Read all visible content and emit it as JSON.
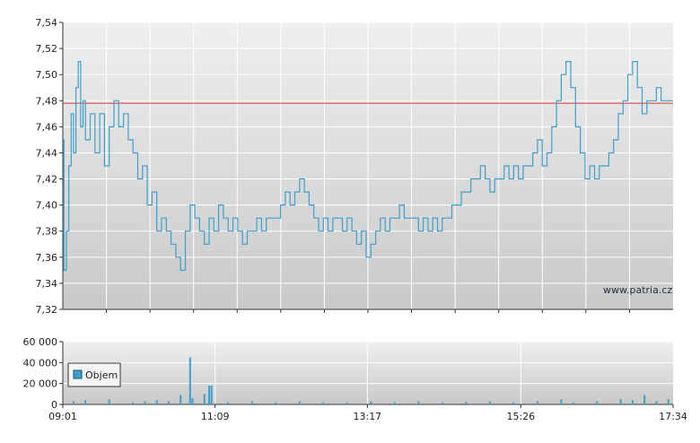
{
  "chart_data": [
    {
      "type": "line",
      "name": "price",
      "title": "",
      "xlabel": "",
      "ylabel": "",
      "ylim": [
        7.32,
        7.54
      ],
      "yticks": [
        "7,54",
        "7,52",
        "7,50",
        "7,48",
        "7,46",
        "7,44",
        "7,42",
        "7,40",
        "7,38",
        "7,36",
        "7,34",
        "7,32"
      ],
      "reference_line": 7.478,
      "grid": true,
      "watermark": "www.patria.cz",
      "series": [
        {
          "points": [
            [
              "09:01",
              7.45
            ],
            [
              "09:02",
              7.35
            ],
            [
              "09:04",
              7.38
            ],
            [
              "09:06",
              7.43
            ],
            [
              "09:08",
              7.47
            ],
            [
              "09:10",
              7.44
            ],
            [
              "09:12",
              7.49
            ],
            [
              "09:14",
              7.51
            ],
            [
              "09:16",
              7.46
            ],
            [
              "09:18",
              7.48
            ],
            [
              "09:20",
              7.45
            ],
            [
              "09:24",
              7.47
            ],
            [
              "09:28",
              7.44
            ],
            [
              "09:32",
              7.47
            ],
            [
              "09:36",
              7.43
            ],
            [
              "09:40",
              7.46
            ],
            [
              "09:44",
              7.48
            ],
            [
              "09:48",
              7.46
            ],
            [
              "09:52",
              7.47
            ],
            [
              "09:56",
              7.45
            ],
            [
              "10:00",
              7.44
            ],
            [
              "10:04",
              7.42
            ],
            [
              "10:08",
              7.43
            ],
            [
              "10:12",
              7.4
            ],
            [
              "10:16",
              7.41
            ],
            [
              "10:20",
              7.38
            ],
            [
              "10:24",
              7.39
            ],
            [
              "10:28",
              7.38
            ],
            [
              "10:32",
              7.37
            ],
            [
              "10:36",
              7.36
            ],
            [
              "10:40",
              7.35
            ],
            [
              "10:44",
              7.38
            ],
            [
              "10:48",
              7.4
            ],
            [
              "10:52",
              7.39
            ],
            [
              "10:56",
              7.38
            ],
            [
              "11:00",
              7.37
            ],
            [
              "11:04",
              7.39
            ],
            [
              "11:08",
              7.38
            ],
            [
              "11:12",
              7.4
            ],
            [
              "11:16",
              7.39
            ],
            [
              "11:20",
              7.38
            ],
            [
              "11:24",
              7.39
            ],
            [
              "11:28",
              7.38
            ],
            [
              "11:32",
              7.37
            ],
            [
              "11:36",
              7.38
            ],
            [
              "11:40",
              7.38
            ],
            [
              "11:44",
              7.39
            ],
            [
              "11:48",
              7.38
            ],
            [
              "11:52",
              7.39
            ],
            [
              "11:56",
              7.39
            ],
            [
              "12:00",
              7.39
            ],
            [
              "12:04",
              7.4
            ],
            [
              "12:08",
              7.41
            ],
            [
              "12:12",
              7.4
            ],
            [
              "12:16",
              7.41
            ],
            [
              "12:20",
              7.42
            ],
            [
              "12:24",
              7.41
            ],
            [
              "12:28",
              7.4
            ],
            [
              "12:32",
              7.39
            ],
            [
              "12:36",
              7.38
            ],
            [
              "12:40",
              7.39
            ],
            [
              "12:44",
              7.38
            ],
            [
              "12:48",
              7.39
            ],
            [
              "12:52",
              7.39
            ],
            [
              "12:56",
              7.38
            ],
            [
              "13:00",
              7.39
            ],
            [
              "13:04",
              7.38
            ],
            [
              "13:08",
              7.37
            ],
            [
              "13:12",
              7.38
            ],
            [
              "13:16",
              7.36
            ],
            [
              "13:20",
              7.37
            ],
            [
              "13:24",
              7.38
            ],
            [
              "13:28",
              7.39
            ],
            [
              "13:32",
              7.38
            ],
            [
              "13:36",
              7.39
            ],
            [
              "13:40",
              7.39
            ],
            [
              "13:44",
              7.4
            ],
            [
              "13:48",
              7.39
            ],
            [
              "13:52",
              7.39
            ],
            [
              "13:56",
              7.39
            ],
            [
              "14:00",
              7.38
            ],
            [
              "14:04",
              7.39
            ],
            [
              "14:08",
              7.38
            ],
            [
              "14:12",
              7.39
            ],
            [
              "14:16",
              7.38
            ],
            [
              "14:20",
              7.39
            ],
            [
              "14:24",
              7.39
            ],
            [
              "14:28",
              7.4
            ],
            [
              "14:32",
              7.4
            ],
            [
              "14:36",
              7.41
            ],
            [
              "14:40",
              7.41
            ],
            [
              "14:44",
              7.42
            ],
            [
              "14:48",
              7.42
            ],
            [
              "14:52",
              7.43
            ],
            [
              "14:56",
              7.42
            ],
            [
              "15:00",
              7.41
            ],
            [
              "15:04",
              7.42
            ],
            [
              "15:08",
              7.42
            ],
            [
              "15:12",
              7.43
            ],
            [
              "15:16",
              7.42
            ],
            [
              "15:20",
              7.43
            ],
            [
              "15:24",
              7.42
            ],
            [
              "15:28",
              7.43
            ],
            [
              "15:32",
              7.43
            ],
            [
              "15:36",
              7.44
            ],
            [
              "15:40",
              7.45
            ],
            [
              "15:44",
              7.43
            ],
            [
              "15:48",
              7.44
            ],
            [
              "15:52",
              7.46
            ],
            [
              "15:56",
              7.48
            ],
            [
              "16:00",
              7.5
            ],
            [
              "16:04",
              7.51
            ],
            [
              "16:08",
              7.49
            ],
            [
              "16:12",
              7.46
            ],
            [
              "16:16",
              7.44
            ],
            [
              "16:20",
              7.42
            ],
            [
              "16:24",
              7.43
            ],
            [
              "16:28",
              7.42
            ],
            [
              "16:32",
              7.43
            ],
            [
              "16:36",
              7.43
            ],
            [
              "16:40",
              7.44
            ],
            [
              "16:44",
              7.45
            ],
            [
              "16:48",
              7.47
            ],
            [
              "16:52",
              7.48
            ],
            [
              "16:56",
              7.5
            ],
            [
              "17:00",
              7.51
            ],
            [
              "17:04",
              7.49
            ],
            [
              "17:08",
              7.47
            ],
            [
              "17:12",
              7.48
            ],
            [
              "17:16",
              7.48
            ],
            [
              "17:20",
              7.49
            ],
            [
              "17:24",
              7.48
            ],
            [
              "17:28",
              7.48
            ],
            [
              "17:34",
              7.48
            ]
          ]
        }
      ]
    },
    {
      "type": "bar",
      "name": "volume",
      "title": "",
      "xlabel": "",
      "ylabel": "",
      "ylim": [
        0,
        60000
      ],
      "yticks": [
        "60 000",
        "40 000",
        "20 000",
        "0"
      ],
      "xticks": [
        "09:01",
        "11:09",
        "13:17",
        "15:26",
        "17:34"
      ],
      "grid": true,
      "legend": {
        "position": "top-left",
        "label": "Objem"
      },
      "series": [
        {
          "name": "Objem",
          "points": [
            [
              "09:10",
              3000
            ],
            [
              "09:20",
              4000
            ],
            [
              "09:40",
              5000
            ],
            [
              "10:00",
              2000
            ],
            [
              "10:10",
              3000
            ],
            [
              "10:20",
              4000
            ],
            [
              "10:30",
              3000
            ],
            [
              "10:40",
              9000
            ],
            [
              "10:48",
              45000
            ],
            [
              "10:50",
              6000
            ],
            [
              "11:00",
              10000
            ],
            [
              "11:04",
              18000
            ],
            [
              "11:06",
              18000
            ],
            [
              "11:20",
              2000
            ],
            [
              "11:40",
              3000
            ],
            [
              "12:00",
              2000
            ],
            [
              "12:20",
              3000
            ],
            [
              "12:40",
              2000
            ],
            [
              "13:00",
              2000
            ],
            [
              "13:20",
              3000
            ],
            [
              "13:40",
              2000
            ],
            [
              "14:00",
              3000
            ],
            [
              "14:20",
              2000
            ],
            [
              "14:40",
              2500
            ],
            [
              "15:00",
              3000
            ],
            [
              "15:20",
              2000
            ],
            [
              "15:40",
              3000
            ],
            [
              "16:00",
              5000
            ],
            [
              "16:10",
              2000
            ],
            [
              "16:30",
              3000
            ],
            [
              "16:50",
              5000
            ],
            [
              "17:00",
              4000
            ],
            [
              "17:10",
              9000
            ],
            [
              "17:20",
              3000
            ],
            [
              "17:30",
              5000
            ]
          ]
        }
      ]
    }
  ]
}
